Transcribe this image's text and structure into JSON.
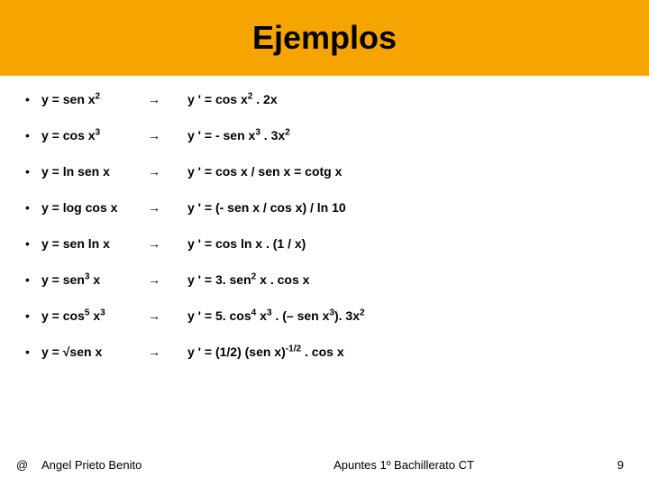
{
  "header": {
    "title": "Ejemplos",
    "background_color": "#f6a500",
    "title_color": "#000000",
    "title_fontsize": 36
  },
  "body": {
    "bullet": "•",
    "arrow": "→",
    "fontsize": 14,
    "fontweight": 700,
    "rows": [
      {
        "fn_html": "y = sen x<sup>2</sup>",
        "deriv_html": "y ' = cos x<sup>2</sup> . 2x"
      },
      {
        "fn_html": "y = cos x<sup>3</sup>",
        "deriv_html": "y ' = - sen x<sup>3</sup> . 3x<sup>2</sup>"
      },
      {
        "fn_html": "y = ln sen x",
        "deriv_html": "y ' = cos x / sen x = cotg x"
      },
      {
        "fn_html": "y = log cos x",
        "deriv_html": "y ' = (- sen x / cos x) / ln 10"
      },
      {
        "fn_html": "y = sen ln x",
        "deriv_html": "y ' = cos ln x . (1 / x)"
      },
      {
        "fn_html": "y = sen<sup>3</sup> x",
        "deriv_html": "y ' = 3. sen<sup>2</sup> x . cos x"
      },
      {
        "fn_html": "y = cos<sup>5</sup> x<sup>3</sup>",
        "deriv_html": "y ' = 5. cos<sup>4</sup> x<sup>3</sup> . (– sen x<sup>3</sup>). 3x<sup>2</sup>"
      },
      {
        "fn_html": "y = √sen x",
        "deriv_html": "y ' = (1/2) (sen x)<sup>-1/2</sup> . cos x"
      }
    ]
  },
  "footer": {
    "at": "@",
    "author": "Angel Prieto Benito",
    "notes": "Apuntes 1º Bachillerato CT",
    "page": "9"
  }
}
